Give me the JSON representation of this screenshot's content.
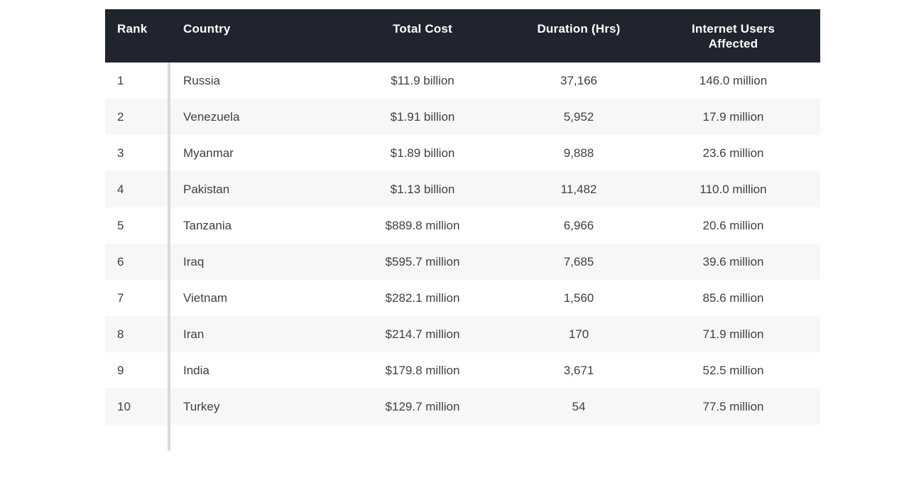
{
  "colors": {
    "header_bg": "#20242f",
    "header_text": "#ffffff",
    "body_text": "#3d4044",
    "row_bg": "#ffffff",
    "row_alt_bg": "#f7f7f8",
    "divider": "#d8dadc"
  },
  "table": {
    "columns": [
      {
        "key": "rank",
        "label": "Rank",
        "align": "left"
      },
      {
        "key": "country",
        "label": "Country",
        "align": "left"
      },
      {
        "key": "total_cost",
        "label": "Total Cost",
        "align": "center"
      },
      {
        "key": "duration_hrs",
        "label": "Duration (Hrs)",
        "align": "center"
      },
      {
        "key": "users_affected",
        "label": "Internet Users Affected",
        "align": "center"
      }
    ],
    "rows": [
      {
        "rank": "1",
        "country": "Russia",
        "total_cost": "$11.9 billion",
        "duration_hrs": "37,166",
        "users_affected": "146.0 million"
      },
      {
        "rank": "2",
        "country": "Venezuela",
        "total_cost": "$1.91 billion",
        "duration_hrs": "5,952",
        "users_affected": "17.9 million"
      },
      {
        "rank": "3",
        "country": "Myanmar",
        "total_cost": "$1.89 billion",
        "duration_hrs": "9,888",
        "users_affected": "23.6 million"
      },
      {
        "rank": "4",
        "country": "Pakistan",
        "total_cost": "$1.13 billion",
        "duration_hrs": "11,482",
        "users_affected": "110.0 million"
      },
      {
        "rank": "5",
        "country": "Tanzania",
        "total_cost": "$889.8 million",
        "duration_hrs": "6,966",
        "users_affected": "20.6 million"
      },
      {
        "rank": "6",
        "country": "Iraq",
        "total_cost": "$595.7 million",
        "duration_hrs": "7,685",
        "users_affected": "39.6 million"
      },
      {
        "rank": "7",
        "country": "Vietnam",
        "total_cost": "$282.1 million",
        "duration_hrs": "1,560",
        "users_affected": "85.6 million"
      },
      {
        "rank": "8",
        "country": "Iran",
        "total_cost": "$214.7 million",
        "duration_hrs": "170",
        "users_affected": "71.9 million"
      },
      {
        "rank": "9",
        "country": "India",
        "total_cost": "$179.8 million",
        "duration_hrs": "3,671",
        "users_affected": "52.5 million"
      },
      {
        "rank": "10",
        "country": "Turkey",
        "total_cost": "$129.7 million",
        "duration_hrs": "54",
        "users_affected": "77.5 million"
      }
    ]
  },
  "chart_data": {
    "type": "table",
    "title": "",
    "columns": [
      "Rank",
      "Country",
      "Total Cost",
      "Duration (Hrs)",
      "Internet Users Affected"
    ],
    "rows": [
      [
        "1",
        "Russia",
        "$11.9 billion",
        "37,166",
        "146.0 million"
      ],
      [
        "2",
        "Venezuela",
        "$1.91 billion",
        "5,952",
        "17.9 million"
      ],
      [
        "3",
        "Myanmar",
        "$1.89 billion",
        "9,888",
        "23.6 million"
      ],
      [
        "4",
        "Pakistan",
        "$1.13 billion",
        "11,482",
        "110.0 million"
      ],
      [
        "5",
        "Tanzania",
        "$889.8 million",
        "6,966",
        "20.6 million"
      ],
      [
        "6",
        "Iraq",
        "$595.7 million",
        "7,685",
        "39.6 million"
      ],
      [
        "7",
        "Vietnam",
        "$282.1 million",
        "1,560",
        "85.6 million"
      ],
      [
        "8",
        "Iran",
        "$214.7 million",
        "170",
        "71.9 million"
      ],
      [
        "9",
        "India",
        "$179.8 million",
        "3,671",
        "52.5 million"
      ],
      [
        "10",
        "Turkey",
        "$129.7 million",
        "54",
        "77.5 million"
      ]
    ],
    "layout_hints": {
      "header_style": "dark navy band, white bold text",
      "row_striping": "white / light gray alternating",
      "rank_column_divider": true
    }
  }
}
